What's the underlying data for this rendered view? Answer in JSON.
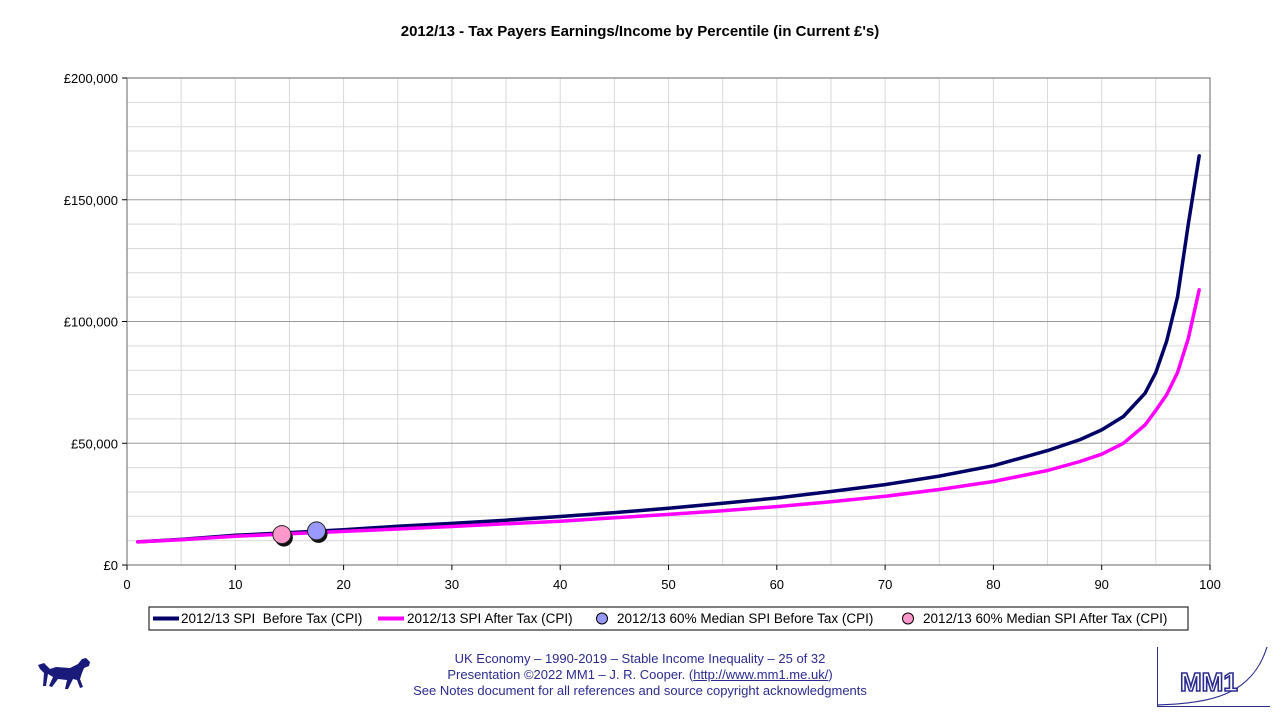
{
  "chart_data": {
    "type": "line",
    "title": "2012/13 - Tax Payers Earnings/Income by Percentile (in Current £'s)",
    "xlabel": "",
    "ylabel": "",
    "xlim": [
      0,
      100
    ],
    "ylim": [
      0,
      200000
    ],
    "x_ticks": [
      "0",
      "10",
      "20",
      "30",
      "40",
      "50",
      "60",
      "70",
      "80",
      "90",
      "100"
    ],
    "y_ticks": [
      "£0",
      "£50,000",
      "£100,000",
      "£150,000",
      "£200,000"
    ],
    "grid": true,
    "legend_position": "bottom",
    "series": [
      {
        "name": "2012/13 SPI  Before Tax (CPI)",
        "color": "#000066",
        "x": [
          1,
          5,
          10,
          15,
          20,
          25,
          30,
          35,
          40,
          45,
          50,
          55,
          60,
          65,
          70,
          75,
          80,
          85,
          88,
          90,
          92,
          94,
          95,
          96,
          97,
          98,
          99
        ],
        "y": [
          9500,
          10500,
          12200,
          13300,
          14500,
          15900,
          17100,
          18400,
          19900,
          21500,
          23300,
          25400,
          27500,
          30200,
          33000,
          36500,
          40800,
          47000,
          51500,
          55500,
          61000,
          70500,
          79000,
          92000,
          110000,
          140000,
          168000
        ]
      },
      {
        "name": "2012/13 SPI After Tax (CPI)",
        "color": "#ff00ff",
        "x": [
          1,
          5,
          10,
          15,
          20,
          25,
          30,
          35,
          40,
          45,
          50,
          55,
          60,
          65,
          70,
          75,
          80,
          85,
          88,
          90,
          92,
          94,
          95,
          96,
          97,
          98,
          99
        ],
        "y": [
          9500,
          10400,
          11800,
          12800,
          13800,
          14800,
          15800,
          16900,
          18000,
          19400,
          20800,
          22300,
          24000,
          26000,
          28200,
          31000,
          34300,
          38800,
          42500,
          45500,
          50000,
          57500,
          63500,
          70000,
          79000,
          93000,
          113000
        ]
      },
      {
        "name": "2012/13 60% Median SPI Before Tax (CPI)",
        "color": "#9999ff",
        "marker": "circle",
        "x": [
          17.5
        ],
        "y": [
          14000
        ]
      },
      {
        "name": "2012/13 60% Median SPI After Tax (CPI)",
        "color": "#ff99cc",
        "marker": "circle",
        "x": [
          14.3
        ],
        "y": [
          12500
        ]
      }
    ]
  },
  "footer": {
    "line1": "UK Economy – 1990-2019 – Stable Income Inequality – 25 of 32",
    "line2_prefix": "Presentation ©2022 MM1 – J. R. Cooper. (",
    "link": "http://www.mm1.me.uk/",
    "line2_suffix": ")",
    "line3": "See Notes document for all references and source copyright acknowledgments"
  },
  "logo": {
    "text": "MM1"
  }
}
